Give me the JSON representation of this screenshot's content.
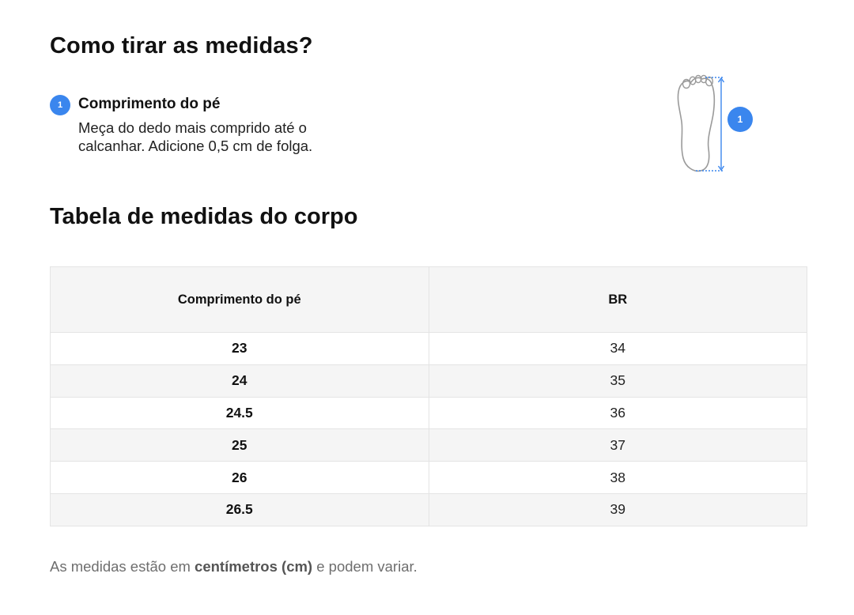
{
  "measure_section": {
    "title": "Como tirar as medidas?",
    "step": {
      "number": "1",
      "title": "Comprimento do pé",
      "description": "Meça do dedo mais comprido até o calcanhar. Adicione 0,5 cm de folga."
    },
    "illustration": {
      "icon": "foot-outline-icon",
      "badge": "1",
      "accent_color": "#3a86ee"
    }
  },
  "table_section": {
    "title": "Tabela de medidas do corpo",
    "headers": [
      "Comprimento do pé",
      "BR"
    ],
    "rows": [
      {
        "length": "23",
        "br": "34"
      },
      {
        "length": "24",
        "br": "35"
      },
      {
        "length": "24.5",
        "br": "36"
      },
      {
        "length": "25",
        "br": "37"
      },
      {
        "length": "26",
        "br": "38"
      },
      {
        "length": "26.5",
        "br": "39"
      }
    ]
  },
  "note": {
    "prefix": "As medidas estão em ",
    "emphasis": "centímetros (cm)",
    "suffix": " e podem variar."
  }
}
